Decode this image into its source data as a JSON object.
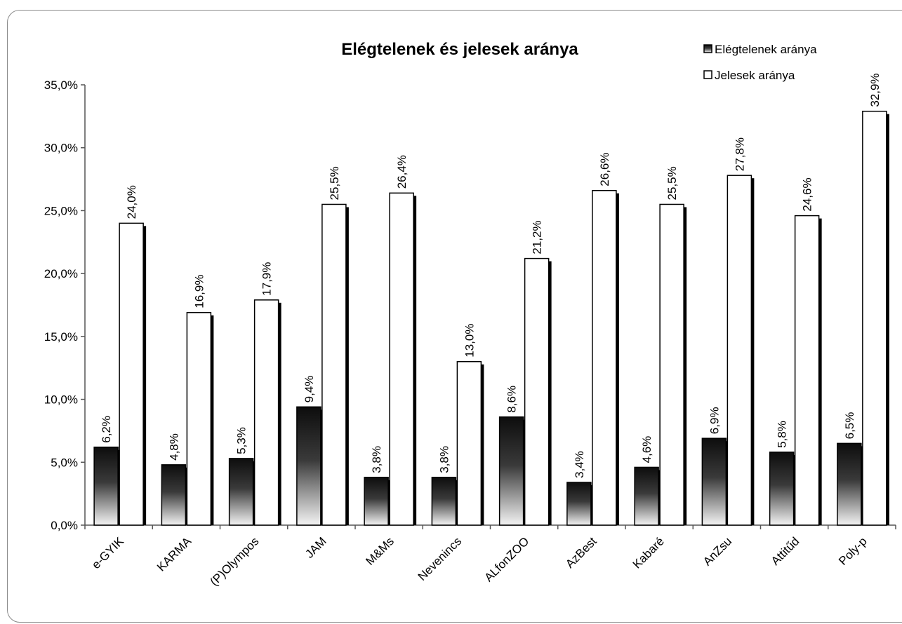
{
  "chart_data": {
    "type": "bar",
    "title": "Elégtelenek és jelesek aránya",
    "categories": [
      "e-GYIK",
      "KARMA",
      "(P)Olympos",
      "JAM",
      "M&Ms",
      "Nevenincs",
      "ALfonZOO",
      "AzBest",
      "Kabaré",
      "AnZsu",
      "Attitűd",
      "Poly-p"
    ],
    "series": [
      {
        "name": "Elégtelenek aránya",
        "values": [
          6.2,
          4.8,
          5.3,
          9.4,
          3.8,
          3.8,
          8.6,
          3.4,
          4.6,
          6.9,
          5.8,
          6.5
        ],
        "labels": [
          "6,2%",
          "4,8%",
          "5,3%",
          "9,4%",
          "3,8%",
          "3,8%",
          "8,6%",
          "3,4%",
          "4,6%",
          "6,9%",
          "5,8%",
          "6,5%"
        ],
        "color": "#1a1a1a"
      },
      {
        "name": "Jelesek aránya",
        "values": [
          24.0,
          16.9,
          17.9,
          25.5,
          26.4,
          13.0,
          21.2,
          26.6,
          25.5,
          27.8,
          24.6,
          32.9
        ],
        "labels": [
          "24,0%",
          "16,9%",
          "17,9%",
          "25,5%",
          "26,4%",
          "13,0%",
          "21,2%",
          "26,6%",
          "25,5%",
          "27,8%",
          "24,6%",
          "32,9%"
        ],
        "color": "#ffffff"
      }
    ],
    "yticks": [
      "0,0%",
      "5,0%",
      "10,0%",
      "15,0%",
      "20,0%",
      "25,0%",
      "30,0%",
      "35,0%"
    ],
    "ylim": [
      0,
      35
    ],
    "grid": false,
    "legend": "top-right"
  }
}
